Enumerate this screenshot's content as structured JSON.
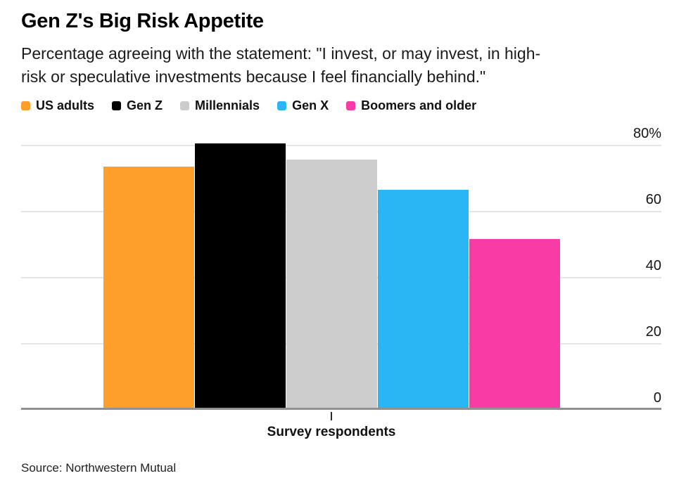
{
  "header": {
    "title": "Gen Z's Big Risk Appetite",
    "subtitle_lines": [
      "Percentage agreeing with the statement: \"I invest, or may invest, in high-",
      "risk or speculative investments because I feel financially behind.\""
    ]
  },
  "chart_data": {
    "type": "bar",
    "title": "Gen Z's Big Risk Appetite",
    "subtitle": "Percentage agreeing with the statement: \"I invest, or may invest, in high-risk or speculative investments because I feel financially behind.\"",
    "categories": [
      "Survey respondents"
    ],
    "series": [
      {
        "name": "US adults",
        "color": "#FF9F2B",
        "values": [
          73
        ]
      },
      {
        "name": "Gen Z",
        "color": "#000000",
        "values": [
          80
        ]
      },
      {
        "name": "Millennials",
        "color": "#CCCCCC",
        "values": [
          75
        ]
      },
      {
        "name": "Gen X",
        "color": "#2AB6F5",
        "values": [
          66
        ]
      },
      {
        "name": "Boomers and older",
        "color": "#F73CA5",
        "values": [
          51
        ]
      }
    ],
    "xlabel": "Survey respondents",
    "ylabel": "",
    "ylim": [
      0,
      80
    ],
    "yticks": [
      {
        "value": 0,
        "label": "0"
      },
      {
        "value": 20,
        "label": "20"
      },
      {
        "value": 40,
        "label": "40"
      },
      {
        "value": 60,
        "label": "60"
      },
      {
        "value": 80,
        "label": "80%"
      }
    ],
    "grid": "horizontal",
    "legend_position": "top",
    "colors": {
      "gridline": "#e5e5e5",
      "axis_line": "#919191",
      "tick": "#2b2b2b"
    }
  },
  "footer": {
    "source": "Source: Northwestern Mutual"
  }
}
